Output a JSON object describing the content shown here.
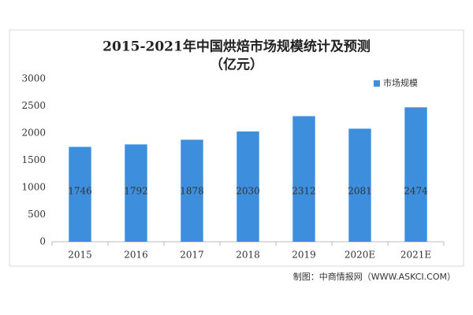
{
  "chart_data": {
    "type": "bar",
    "title": "2015-2021年中国烘焙市场规模统计及预测",
    "subtitle": "（亿元）",
    "categories": [
      "2015",
      "2016",
      "2017",
      "2018",
      "2019",
      "2020E",
      "2021E"
    ],
    "series": [
      {
        "name": "市场规模",
        "color": "#3d8fde",
        "values": [
          1746,
          1792,
          1878,
          2030,
          2312,
          2081,
          2474
        ]
      }
    ],
    "ylim": [
      0,
      3000
    ],
    "yticks": [
      0,
      500,
      1000,
      1500,
      2000,
      2500,
      3000
    ],
    "grid": false,
    "legend": "top-right",
    "source": "制图：中商情报网（WWW.ASKCI.COM）"
  }
}
